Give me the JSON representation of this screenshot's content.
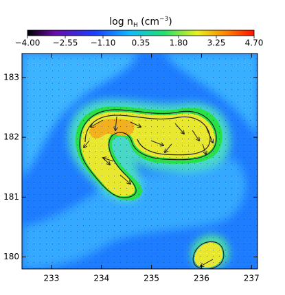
{
  "chart_data": {
    "type": "heatmap",
    "title": [
      "log n",
      "H",
      " (cm",
      "−3",
      ")"
    ],
    "colorbar": {
      "clim": [
        -4,
        4.7
      ],
      "ticks": [
        {
          "value": -4,
          "label": "−4.00"
        },
        {
          "value": -2.55,
          "label": "−2.55"
        },
        {
          "value": -1.1,
          "label": "−1.10"
        },
        0.35,
        {
          "value": 1.8,
          "label": "1.80"
        },
        3.25,
        {
          "value": 4.7,
          "label": "4.70"
        }
      ]
    },
    "xlim": [
      232.41,
      237.12
    ],
    "xticks": [
      233,
      234,
      235,
      236,
      237
    ],
    "ylim": [
      179.8,
      183.4
    ],
    "yticks": [
      180,
      181,
      182,
      183
    ]
  }
}
